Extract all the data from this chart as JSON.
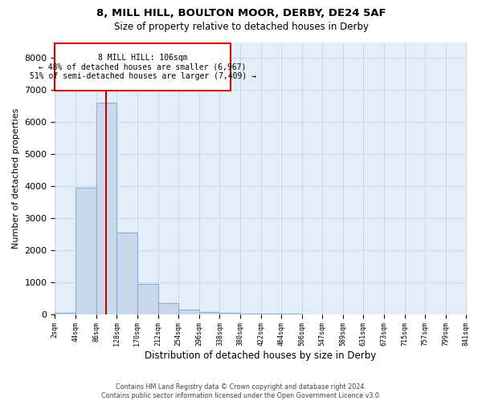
{
  "title1": "8, MILL HILL, BOULTON MOOR, DERBY, DE24 5AF",
  "title2": "Size of property relative to detached houses in Derby",
  "xlabel": "Distribution of detached houses by size in Derby",
  "ylabel": "Number of detached properties",
  "footnote": "Contains HM Land Registry data © Crown copyright and database right 2024.\nContains public sector information licensed under the Open Government Licence v3.0.",
  "bar_color": "#c9d9ec",
  "bar_edge_color": "#8bafd4",
  "annotation_box_color": "#cc0000",
  "vline_color": "#cc0000",
  "annotation_text": "8 MILL HILL: 106sqm\n← 48% of detached houses are smaller (6,967)\n51% of semi-detached houses are larger (7,409) →",
  "property_size_sqm": 106,
  "bin_edges": [
    2,
    44,
    86,
    128,
    170,
    212,
    254,
    296,
    338,
    380,
    422,
    464,
    506,
    547,
    589,
    631,
    673,
    715,
    757,
    799,
    841
  ],
  "bar_heights": [
    50,
    3950,
    6600,
    2550,
    950,
    350,
    140,
    80,
    50,
    30,
    20,
    10,
    5,
    5,
    5,
    5,
    5,
    5,
    5,
    5
  ],
  "ylim": [
    0,
    8500
  ],
  "yticks": [
    0,
    1000,
    2000,
    3000,
    4000,
    5000,
    6000,
    7000,
    8000
  ],
  "grid_color": "#c8d8e8",
  "background_color": "#e4eef8"
}
